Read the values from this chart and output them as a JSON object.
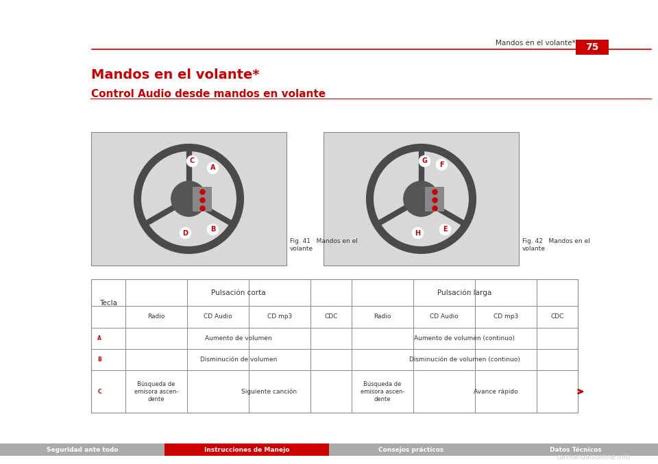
{
  "page_title": "Mandos en el volante*",
  "page_number": "75",
  "section_title": "Control Audio desde mandos en volante",
  "header_line_color": "#cc0000",
  "title_color": "#cc0000",
  "section_title_color": "#cc0000",
  "bg_color": "#ffffff",
  "fig41_caption": "Fig. 41   Mandos en el\nvolante",
  "fig42_caption": "Fig. 42   Mandos en el\nvolante",
  "table_header_row1": [
    "Tecla",
    "Pulsación corta",
    "",
    "",
    "",
    "Pulsación larga",
    "",
    "",
    ""
  ],
  "table_header_row2": [
    "",
    "Radio",
    "CD Audio",
    "CD mp3",
    "CDC",
    "Radio",
    "CD Audio",
    "CD mp3",
    "CDC"
  ],
  "table_rows": [
    [
      "A",
      "Aumento de volumen",
      "",
      "",
      "",
      "Aumento de volumen (continuo)",
      "",
      "",
      ""
    ],
    [
      "B",
      "Disminución de volumen",
      "",
      "",
      "",
      "Disminución de volumen (continuo)",
      "",
      "",
      ""
    ],
    [
      "C",
      "Búsqueda de\nemisora ascen-\ndente",
      "Siguiente canción",
      "",
      "",
      "Búsqueda de\nemisora ascen-\ndente",
      "Avance rápido",
      "",
      ""
    ]
  ],
  "footer_sections": [
    {
      "text": "Seguridad ante todo",
      "bg": "#aaaaaa",
      "fg": "#ffffff"
    },
    {
      "text": "Instrucciones de Manejo",
      "bg": "#cc0000",
      "fg": "#ffffff"
    },
    {
      "text": "Consejos prácticos",
      "bg": "#aaaaaa",
      "fg": "#ffffff"
    },
    {
      "text": "Datos Técnicos",
      "bg": "#aaaaaa",
      "fg": "#ffffff"
    }
  ],
  "watermark": "carmanualsonline.info",
  "header_section_text": "Mandos en el volante*",
  "top_line_color": "#cc0000"
}
